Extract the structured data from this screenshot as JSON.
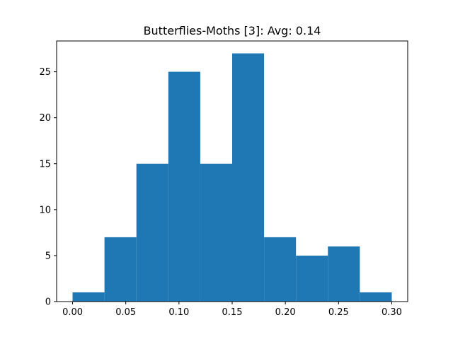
{
  "chart_data": {
    "type": "bar",
    "subtype": "histogram",
    "title": "Butterflies-Moths [3]: Avg: 0.14",
    "xlabel": "",
    "ylabel": "",
    "bin_edges": [
      0.0,
      0.03,
      0.06,
      0.09,
      0.12,
      0.15,
      0.18,
      0.21,
      0.24,
      0.27,
      0.3
    ],
    "values": [
      1,
      7,
      15,
      25,
      15,
      27,
      7,
      5,
      6,
      1
    ],
    "xlim": [
      -0.015,
      0.315
    ],
    "ylim": [
      0,
      28.35
    ],
    "x_ticks": [
      0.0,
      0.05,
      0.1,
      0.15,
      0.2,
      0.25,
      0.3
    ],
    "x_tick_labels": [
      "0.00",
      "0.05",
      "0.10",
      "0.15",
      "0.20",
      "0.25",
      "0.30"
    ],
    "y_ticks": [
      0,
      5,
      10,
      15,
      20,
      25
    ],
    "y_tick_labels": [
      "0",
      "5",
      "10",
      "15",
      "20",
      "25"
    ],
    "bar_color": "#1f77b4",
    "grid": false,
    "legend": "none"
  }
}
